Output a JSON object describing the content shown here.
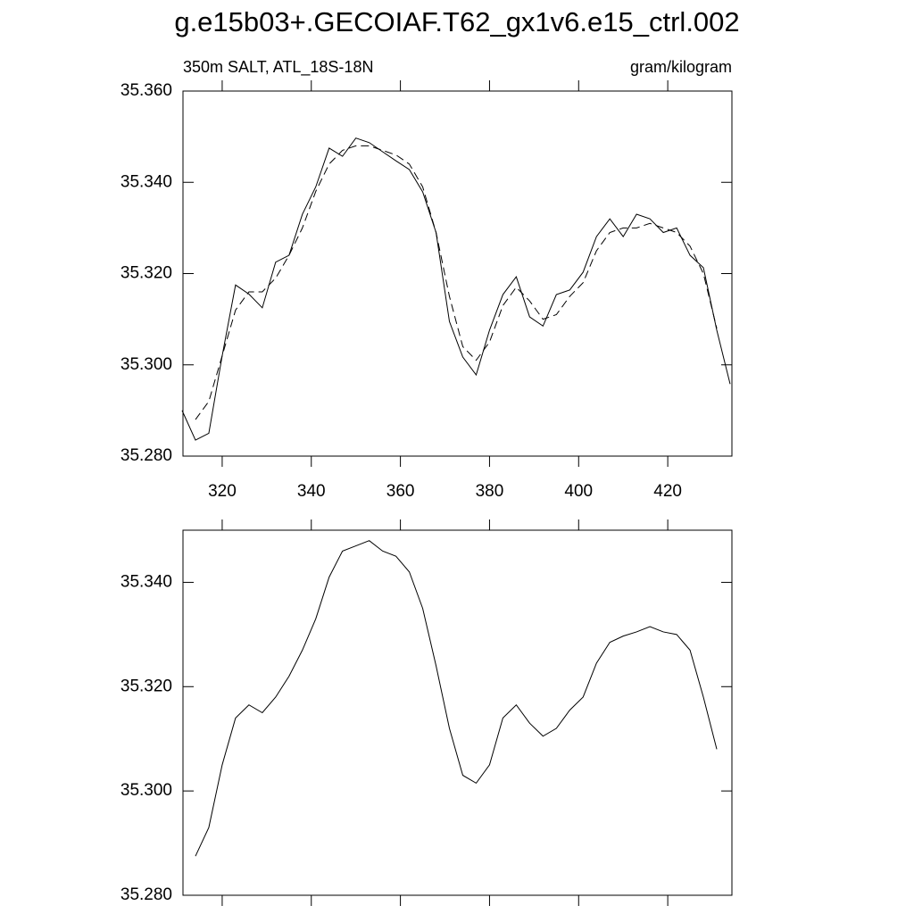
{
  "chart_data": [
    {
      "type": "line",
      "title": "g.e15b03+.GECOIAF.T62_gx1v6.e15_ctrl.002",
      "subtitle_left": "350m SALT, ATL_18S-18N",
      "subtitle_right": "gram/kilogram",
      "x": [
        311,
        314,
        317,
        320,
        323,
        326,
        329,
        332,
        335,
        338,
        341,
        344,
        347,
        350,
        353,
        356,
        359,
        362,
        365,
        368,
        371,
        374,
        377,
        380,
        383,
        386,
        389,
        392,
        395,
        398,
        401,
        404,
        407,
        410,
        413,
        416,
        419,
        422,
        425,
        428,
        431,
        434
      ],
      "series": [
        {
          "color": "#000000",
          "dash": false,
          "values": [
            35.29,
            35.2835,
            35.285,
            35.302,
            35.3175,
            35.3155,
            35.3125,
            35.3225,
            35.324,
            35.333,
            35.339,
            35.3475,
            35.3457,
            35.3497,
            35.3487,
            35.3467,
            35.3447,
            35.3428,
            35.3379,
            35.329,
            35.3095,
            35.3017,
            35.2978,
            35.3076,
            35.3154,
            35.3193,
            35.3105,
            35.3085,
            35.3154,
            35.3164,
            35.3203,
            35.3281,
            35.332,
            35.3281,
            35.333,
            35.332,
            35.329,
            35.33,
            35.324,
            35.3213,
            35.3076,
            35.2958
          ]
        },
        {
          "color": "#000000",
          "dash": true,
          "values": [
            null,
            35.288,
            35.292,
            35.302,
            35.312,
            35.316,
            35.316,
            35.319,
            35.324,
            35.33,
            35.338,
            35.344,
            35.347,
            35.348,
            35.348,
            35.347,
            35.346,
            35.344,
            35.339,
            35.329,
            35.315,
            35.304,
            35.301,
            35.305,
            35.313,
            35.317,
            35.314,
            35.31,
            35.311,
            35.315,
            35.318,
            35.325,
            35.329,
            35.33,
            35.33,
            35.331,
            35.33,
            35.329,
            35.326,
            35.32,
            35.308,
            null
          ]
        }
      ],
      "xlim": [
        311.2,
        434.4
      ],
      "xticks": [
        320,
        340,
        360,
        380,
        400,
        420
      ],
      "xtick_labels": true,
      "ylim": [
        35.28,
        35.36
      ],
      "yticks": [
        {
          "value": 35.28,
          "label": "35.280"
        },
        {
          "value": 35.3,
          "label": "35.300"
        },
        {
          "value": 35.32,
          "label": "35.320"
        },
        {
          "value": 35.34,
          "label": "35.340"
        },
        {
          "value": 35.36,
          "label": "35.360"
        }
      ]
    },
    {
      "type": "line",
      "x": [
        311,
        314,
        317,
        320,
        323,
        326,
        329,
        332,
        335,
        338,
        341,
        344,
        347,
        350,
        353,
        356,
        359,
        362,
        365,
        368,
        371,
        374,
        377,
        380,
        383,
        386,
        389,
        392,
        395,
        398,
        401,
        404,
        407,
        410,
        413,
        416,
        419,
        422,
        425,
        428,
        431,
        434
      ],
      "series": [
        {
          "color": "#000000",
          "dash": false,
          "values": [
            null,
            35.2875,
            35.293,
            35.305,
            35.314,
            35.3165,
            35.315,
            35.318,
            35.322,
            35.327,
            35.333,
            35.341,
            35.346,
            35.347,
            35.348,
            35.346,
            35.345,
            35.342,
            35.335,
            35.324,
            35.312,
            35.303,
            35.3015,
            35.305,
            35.314,
            35.3165,
            35.313,
            35.3105,
            35.312,
            35.3155,
            35.318,
            35.3245,
            35.3285,
            35.3297,
            35.3305,
            35.3315,
            35.3305,
            35.33,
            35.327,
            35.318,
            35.308,
            null
          ]
        }
      ],
      "xlim": [
        311.2,
        434.4
      ],
      "xticks": [
        320,
        340,
        360,
        380,
        400,
        420
      ],
      "xtick_labels": false,
      "ylim": [
        35.28,
        35.35
      ],
      "yticks": [
        {
          "value": 35.28,
          "label": "35.280"
        },
        {
          "value": 35.3,
          "label": "35.300"
        },
        {
          "value": 35.32,
          "label": "35.320"
        },
        {
          "value": 35.34,
          "label": "35.340"
        }
      ]
    }
  ]
}
